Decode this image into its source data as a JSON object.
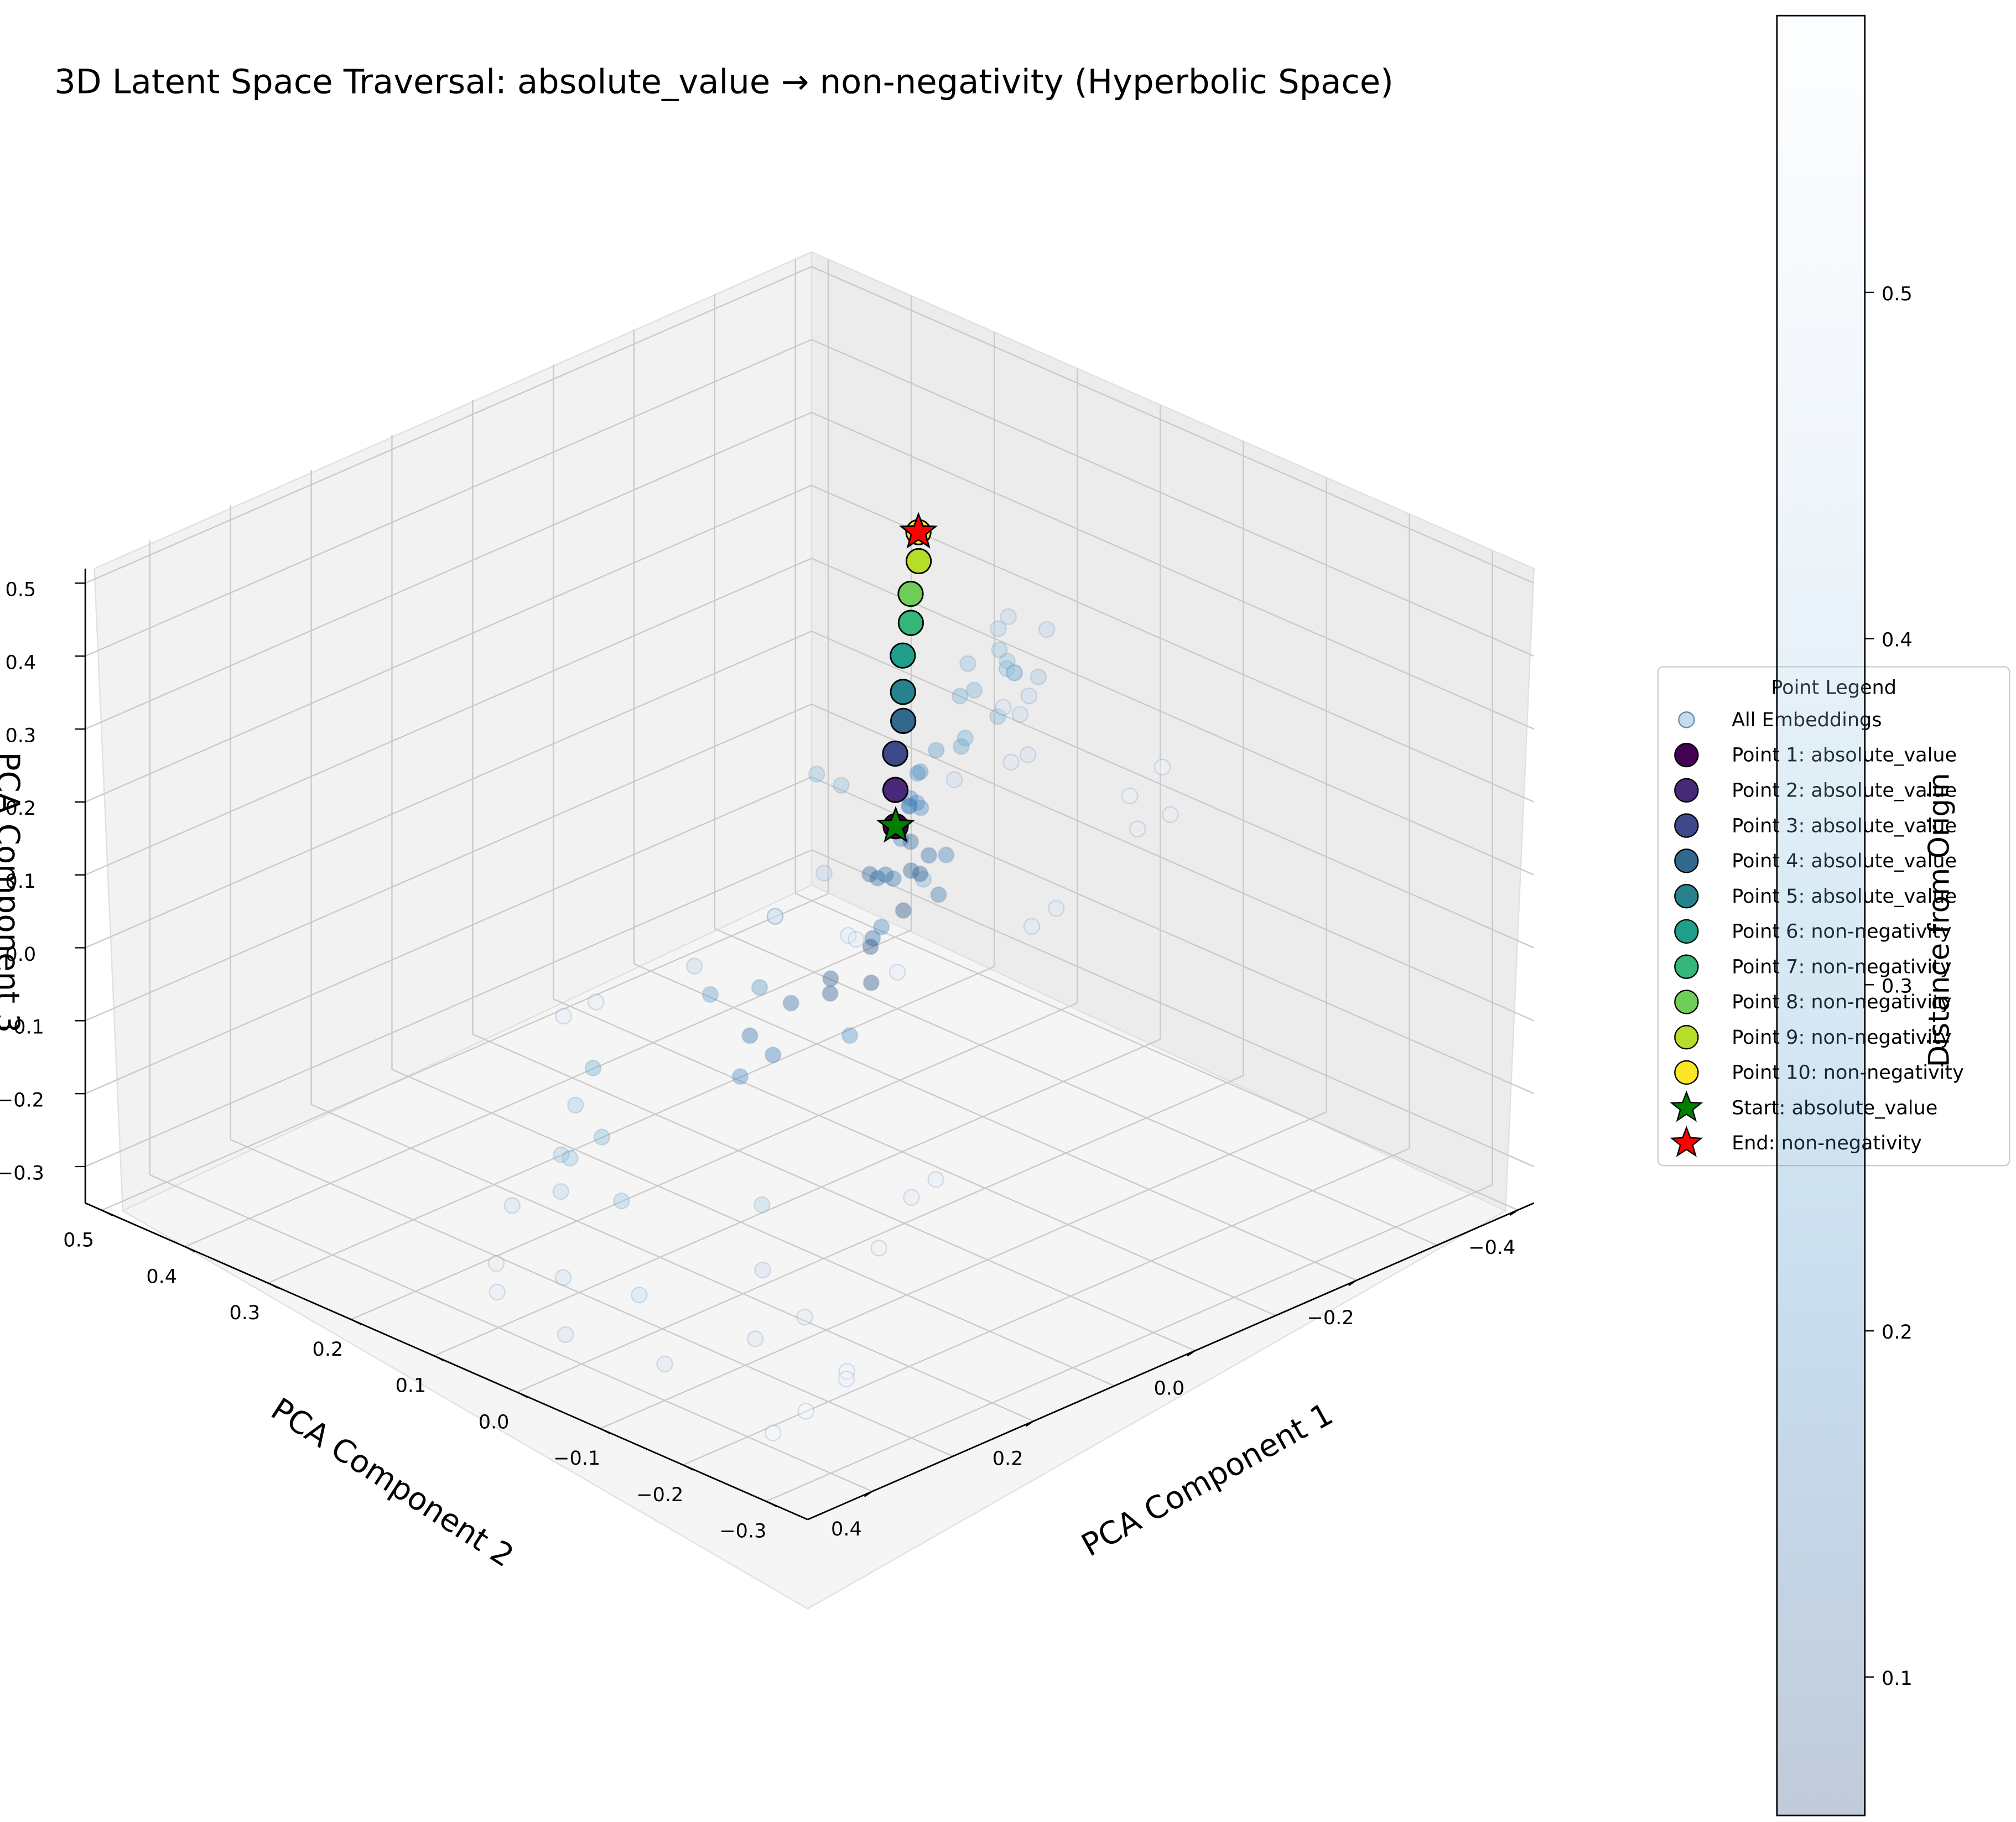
{
  "chart_data": {
    "type": "scatter",
    "title": "3D Latent Space Traversal: absolute_value → non-negativity (Hyperbolic Space)",
    "axes": {
      "x": {
        "label": "PCA Component 1",
        "ticks": [
          "−0.4",
          "−0.2",
          "0.0",
          "0.2",
          "0.4"
        ]
      },
      "y": {
        "label": "PCA Component 2",
        "ticks": [
          "−0.3",
          "−0.2",
          "−0.1",
          "0.0",
          "0.1",
          "0.2",
          "0.3",
          "0.4",
          "0.5"
        ]
      },
      "z": {
        "label": "PCA Component 3",
        "ticks": [
          "0.5",
          "0.4",
          "0.3",
          "0.2",
          "0.1",
          "0.0",
          "−0.1",
          "−0.2",
          "−0.3"
        ]
      }
    },
    "grid": true,
    "colorbar": {
      "label": "Distance from Origin",
      "ticks": [
        "0.5",
        "0.4",
        "0.3",
        "0.2",
        "0.1"
      ],
      "range": [
        0.06,
        0.58
      ],
      "colormap": "Blues",
      "alpha": 0.3
    },
    "legend": {
      "title": "Point Legend",
      "placement": "right",
      "entries": [
        {
          "label": "All Embeddings",
          "color": "#b6d2ea",
          "marker": "circle"
        },
        {
          "label": "Point 1: absolute_value",
          "color": "#440154",
          "marker": "circle"
        },
        {
          "label": "Point 2: absolute_value",
          "color": "#482878",
          "marker": "circle"
        },
        {
          "label": "Point 3: absolute_value",
          "color": "#3e4989",
          "marker": "circle"
        },
        {
          "label": "Point 4: absolute_value",
          "color": "#31688e",
          "marker": "circle"
        },
        {
          "label": "Point 5: absolute_value",
          "color": "#26828e",
          "marker": "circle"
        },
        {
          "label": "Point 6: non-negativity",
          "color": "#1f9e89",
          "marker": "circle"
        },
        {
          "label": "Point 7: non-negativity",
          "color": "#35b779",
          "marker": "circle"
        },
        {
          "label": "Point 8: non-negativity",
          "color": "#6ece58",
          "marker": "circle"
        },
        {
          "label": "Point 9: non-negativity",
          "color": "#b5de2b",
          "marker": "circle"
        },
        {
          "label": "Point 10: non-negativity",
          "color": "#fde725",
          "marker": "circle"
        },
        {
          "label": "Start: absolute_value",
          "color": "#008000",
          "marker": "star"
        },
        {
          "label": "End: non-negativity",
          "color": "#ff0000",
          "marker": "star"
        }
      ]
    },
    "traversal": [
      {
        "x": -0.02,
        "y": 0.03,
        "z": 0.17
      },
      {
        "x": -0.03,
        "y": 0.04,
        "z": 0.21
      },
      {
        "x": -0.04,
        "y": 0.05,
        "z": 0.25
      },
      {
        "x": -0.05,
        "y": 0.05,
        "z": 0.29
      },
      {
        "x": -0.06,
        "y": 0.06,
        "z": 0.32
      },
      {
        "x": -0.07,
        "y": 0.07,
        "z": 0.36
      },
      {
        "x": -0.08,
        "y": 0.07,
        "z": 0.4
      },
      {
        "x": -0.09,
        "y": 0.08,
        "z": 0.43
      },
      {
        "x": -0.1,
        "y": 0.08,
        "z": 0.47
      },
      {
        "x": -0.11,
        "y": 0.09,
        "z": 0.5
      }
    ],
    "start": {
      "label": "absolute_value",
      "x": -0.02,
      "y": 0.03,
      "z": 0.17
    },
    "end": {
      "label": "non-negativity",
      "x": -0.11,
      "y": 0.09,
      "z": 0.5
    },
    "embeddings": [
      {
        "x": 0.02,
        "y": -0.33,
        "z": 0.45,
        "d": 0.56
      },
      {
        "x": 0.05,
        "y": -0.32,
        "z": 0.42,
        "d": 0.55
      },
      {
        "x": 0.01,
        "y": -0.33,
        "z": 0.38,
        "d": 0.54
      },
      {
        "x": 0.03,
        "y": -0.31,
        "z": 0.36,
        "d": 0.53
      },
      {
        "x": 0.1,
        "y": -0.28,
        "z": 0.27,
        "d": 0.5
      },
      {
        "x": 0.12,
        "y": -0.27,
        "z": 0.25,
        "d": 0.5
      },
      {
        "x": 0.3,
        "y": -0.3,
        "z": -0.02,
        "d": 0.52
      },
      {
        "x": 0.28,
        "y": -0.31,
        "z": 0.0,
        "d": 0.51
      },
      {
        "x": 0.33,
        "y": -0.29,
        "z": -0.08,
        "d": 0.53
      },
      {
        "x": 0.38,
        "y": -0.3,
        "z": -0.22,
        "d": 0.56
      },
      {
        "x": 0.36,
        "y": -0.28,
        "z": -0.25,
        "d": 0.55
      },
      {
        "x": 0.4,
        "y": -0.27,
        "z": -0.28,
        "d": 0.57
      },
      {
        "x": 0.42,
        "y": -0.25,
        "z": -0.31,
        "d": 0.57
      },
      {
        "x": 0.35,
        "y": -0.22,
        "z": -0.2,
        "d": 0.5
      },
      {
        "x": 0.37,
        "y": -0.18,
        "z": -0.24,
        "d": 0.48
      },
      {
        "x": 0.33,
        "y": -0.15,
        "z": -0.18,
        "d": 0.45
      },
      {
        "x": 0.4,
        "y": -0.1,
        "z": -0.3,
        "d": 0.48
      },
      {
        "x": 0.3,
        "y": -0.12,
        "z": -0.12,
        "d": 0.4
      },
      {
        "x": 0.38,
        "y": -0.05,
        "z": -0.24,
        "d": 0.44
      },
      {
        "x": 0.42,
        "y": 0.0,
        "z": -0.3,
        "d": 0.47
      },
      {
        "x": 0.33,
        "y": 0.02,
        "z": -0.17,
        "d": 0.38
      },
      {
        "x": 0.2,
        "y": -0.02,
        "z": 0.08,
        "d": 0.26
      },
      {
        "x": 0.22,
        "y": 0.02,
        "z": 0.06,
        "d": 0.27
      },
      {
        "x": 0.15,
        "y": -0.08,
        "z": 0.02,
        "d": 0.24
      },
      {
        "x": 0.1,
        "y": -0.12,
        "z": 0.23,
        "d": 0.33
      },
      {
        "x": 0.08,
        "y": -0.05,
        "z": 0.12,
        "d": 0.2
      },
      {
        "x": 0.06,
        "y": -0.02,
        "z": 0.08,
        "d": 0.14
      },
      {
        "x": 0.12,
        "y": 0.02,
        "z": 0.0,
        "d": 0.15
      },
      {
        "x": 0.14,
        "y": 0.05,
        "z": -0.05,
        "d": 0.16
      },
      {
        "x": 0.04,
        "y": 0.05,
        "z": -0.02,
        "d": 0.1
      },
      {
        "x": 0.02,
        "y": 0.07,
        "z": -0.06,
        "d": 0.1
      },
      {
        "x": 0.0,
        "y": 0.04,
        "z": -0.04,
        "d": 0.08
      },
      {
        "x": -0.03,
        "y": 0.07,
        "z": -0.02,
        "d": 0.09
      },
      {
        "x": -0.05,
        "y": 0.05,
        "z": 0.03,
        "d": 0.09
      },
      {
        "x": 0.06,
        "y": 0.1,
        "z": -0.14,
        "d": 0.18
      },
      {
        "x": 0.08,
        "y": 0.12,
        "z": -0.17,
        "d": 0.22
      },
      {
        "x": -0.06,
        "y": 0.1,
        "z": 0.05,
        "d": 0.13
      },
      {
        "x": -0.08,
        "y": 0.11,
        "z": 0.03,
        "d": 0.14
      },
      {
        "x": -0.1,
        "y": 0.12,
        "z": 0.02,
        "d": 0.16
      },
      {
        "x": -0.12,
        "y": 0.13,
        "z": 0.0,
        "d": 0.18
      },
      {
        "x": -0.14,
        "y": 0.14,
        "z": 0.04,
        "d": 0.2
      },
      {
        "x": -0.13,
        "y": 0.12,
        "z": 0.1,
        "d": 0.21
      },
      {
        "x": -0.16,
        "y": 0.15,
        "z": 0.07,
        "d": 0.23
      },
      {
        "x": -0.18,
        "y": 0.16,
        "z": 0.06,
        "d": 0.25
      },
      {
        "x": -0.15,
        "y": 0.13,
        "z": 0.13,
        "d": 0.24
      },
      {
        "x": -0.11,
        "y": 0.1,
        "z": 0.13,
        "d": 0.2
      },
      {
        "x": -0.09,
        "y": 0.08,
        "z": 0.09,
        "d": 0.15
      },
      {
        "x": -0.07,
        "y": 0.06,
        "z": 0.07,
        "d": 0.12
      },
      {
        "x": -0.04,
        "y": 0.02,
        "z": 0.1,
        "d": 0.11
      },
      {
        "x": -0.02,
        "y": -0.01,
        "z": 0.15,
        "d": 0.15
      },
      {
        "x": 0.01,
        "y": -0.06,
        "z": 0.19,
        "d": 0.2
      },
      {
        "x": 0.04,
        "y": -0.08,
        "z": 0.16,
        "d": 0.18
      },
      {
        "x": -0.01,
        "y": -0.01,
        "z": 0.22,
        "d": 0.22
      },
      {
        "x": -0.03,
        "y": 0.01,
        "z": 0.25,
        "d": 0.25
      },
      {
        "x": -0.06,
        "y": -0.01,
        "z": 0.28,
        "d": 0.29
      },
      {
        "x": -0.06,
        "y": 0.02,
        "z": 0.26,
        "d": 0.27
      },
      {
        "x": -0.11,
        "y": 0.04,
        "z": 0.3,
        "d": 0.32
      },
      {
        "x": -0.13,
        "y": 0.05,
        "z": 0.33,
        "d": 0.36
      },
      {
        "x": -0.17,
        "y": 0.04,
        "z": 0.38,
        "d": 0.42
      },
      {
        "x": -0.2,
        "y": 0.08,
        "z": 0.3,
        "d": 0.37
      },
      {
        "x": -0.22,
        "y": 0.09,
        "z": 0.27,
        "d": 0.36
      },
      {
        "x": -0.24,
        "y": 0.11,
        "z": 0.24,
        "d": 0.36
      },
      {
        "x": -0.21,
        "y": 0.12,
        "z": 0.22,
        "d": 0.33
      },
      {
        "x": -0.25,
        "y": 0.13,
        "z": 0.28,
        "d": 0.4
      },
      {
        "x": -0.26,
        "y": 0.12,
        "z": 0.22,
        "d": 0.36
      },
      {
        "x": -0.28,
        "y": 0.14,
        "z": 0.2,
        "d": 0.37
      },
      {
        "x": -0.3,
        "y": 0.12,
        "z": 0.26,
        "d": 0.42
      },
      {
        "x": -0.31,
        "y": 0.14,
        "z": 0.18,
        "d": 0.39
      },
      {
        "x": -0.27,
        "y": 0.15,
        "z": 0.14,
        "d": 0.34
      },
      {
        "x": -0.24,
        "y": 0.16,
        "z": 0.12,
        "d": 0.31
      },
      {
        "x": -0.36,
        "y": 0.2,
        "z": 0.1,
        "d": 0.42
      },
      {
        "x": -0.38,
        "y": 0.23,
        "z": 0.05,
        "d": 0.45
      },
      {
        "x": -0.4,
        "y": 0.24,
        "z": -0.02,
        "d": 0.47
      },
      {
        "x": -0.39,
        "y": 0.26,
        "z": 0.04,
        "d": 0.47
      },
      {
        "x": -0.41,
        "y": 0.27,
        "z": -0.05,
        "d": 0.49
      },
      {
        "x": -0.35,
        "y": 0.28,
        "z": -0.05,
        "d": 0.45
      },
      {
        "x": -0.2,
        "y": 0.35,
        "z": -0.2,
        "d": 0.45
      },
      {
        "x": -0.21,
        "y": 0.36,
        "z": -0.21,
        "d": 0.47
      },
      {
        "x": -0.24,
        "y": 0.33,
        "z": -0.15,
        "d": 0.43
      },
      {
        "x": -0.3,
        "y": 0.3,
        "z": -0.3,
        "d": 0.52
      },
      {
        "x": -0.27,
        "y": 0.33,
        "z": -0.25,
        "d": 0.5
      },
      {
        "x": -0.29,
        "y": 0.34,
        "z": -0.27,
        "d": 0.52
      },
      {
        "x": -0.1,
        "y": 0.35,
        "z": -0.22,
        "d": 0.43
      },
      {
        "x": -0.05,
        "y": 0.42,
        "z": -0.28,
        "d": 0.51
      },
      {
        "x": -0.02,
        "y": 0.43,
        "z": -0.29,
        "d": 0.52
      },
      {
        "x": -0.2,
        "y": 0.3,
        "z": 0.02,
        "d": 0.36
      },
      {
        "x": -0.22,
        "y": 0.29,
        "z": 0.0,
        "d": 0.36
      },
      {
        "x": 0.2,
        "y": 0.17,
        "z": -0.22,
        "d": 0.34
      },
      {
        "x": 0.18,
        "y": 0.2,
        "z": -0.15,
        "d": 0.31
      },
      {
        "x": 0.14,
        "y": 0.26,
        "z": -0.25,
        "d": 0.39
      },
      {
        "x": 0.24,
        "y": 0.18,
        "z": -0.23,
        "d": 0.38
      },
      {
        "x": 0.26,
        "y": 0.15,
        "z": -0.21,
        "d": 0.37
      },
      {
        "x": 0.22,
        "y": 0.2,
        "z": -0.3,
        "d": 0.42
      },
      {
        "x": 0.27,
        "y": 0.21,
        "z": -0.3,
        "d": 0.45
      },
      {
        "x": 0.32,
        "y": 0.1,
        "z": -0.32,
        "d": 0.46
      },
      {
        "x": 0.3,
        "y": 0.2,
        "z": -0.36,
        "d": 0.51
      },
      {
        "x": 0.34,
        "y": 0.16,
        "z": -0.36,
        "d": 0.52
      }
    ]
  }
}
